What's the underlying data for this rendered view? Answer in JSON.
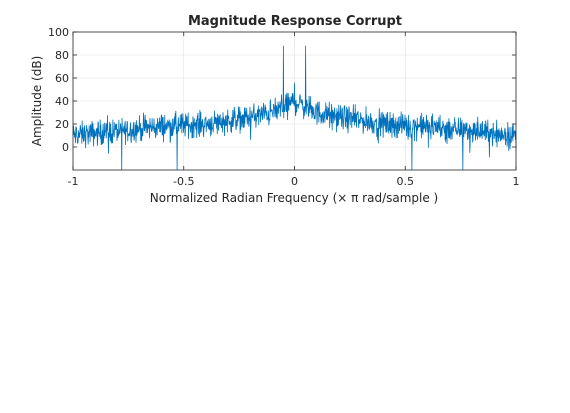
{
  "chart_data": {
    "type": "line",
    "title": "Magnitude Response Corrupt",
    "xlabel": "Normalized Radian Frequency (× π rad/sample )",
    "ylabel": "Amplitude (dB)",
    "xlim": [
      -1,
      1
    ],
    "ylim": [
      -20,
      100
    ],
    "grid": true,
    "xticks": [
      "-1",
      "-0.5",
      "0",
      "0.5",
      "1"
    ],
    "yticks": [
      "0",
      "20",
      "40",
      "60",
      "80",
      "100"
    ],
    "series_color": "#0072BD",
    "noise_floor_db": {
      "x": [
        -1.0,
        -0.8,
        -0.6,
        -0.4,
        -0.2,
        -0.1,
        0.0,
        0.1,
        0.2,
        0.4,
        0.6,
        0.8,
        1.0
      ],
      "y": [
        10,
        14,
        18,
        20,
        26,
        30,
        40,
        30,
        26,
        20,
        18,
        14,
        10
      ]
    },
    "noise_spread_db": 9,
    "peaks": [
      {
        "x": -0.05,
        "y": 88
      },
      {
        "x": 0.05,
        "y": 88
      },
      {
        "x": 0.0,
        "y": 56
      }
    ],
    "dips": [
      {
        "x": -0.78,
        "y": -20
      },
      {
        "x": -0.53,
        "y": -20
      },
      {
        "x": 0.53,
        "y": -20
      },
      {
        "x": 0.76,
        "y": -20
      }
    ]
  }
}
